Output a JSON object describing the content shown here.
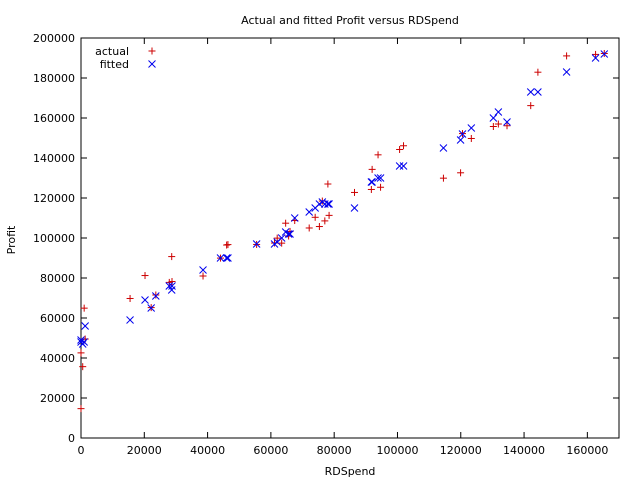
{
  "chart_data": {
    "type": "scatter",
    "title": "Actual and fitted Profit versus RDSpend",
    "xlabel": "RDSpend",
    "ylabel": "Profit",
    "xlim": [
      0,
      170000
    ],
    "ylim": [
      0,
      200000
    ],
    "xticks": [
      0,
      20000,
      40000,
      60000,
      80000,
      100000,
      120000,
      140000,
      160000
    ],
    "yticks": [
      0,
      20000,
      40000,
      60000,
      80000,
      100000,
      120000,
      140000,
      160000,
      180000,
      200000
    ],
    "grid": false,
    "legend_position": "top-left",
    "series": [
      {
        "name": "actual",
        "marker": "+",
        "color": "#cc0000",
        "points": [
          [
            165349,
            192262
          ],
          [
            162598,
            191792
          ],
          [
            153442,
            191050
          ],
          [
            144372,
            182902
          ],
          [
            142107,
            166188
          ],
          [
            131877,
            156991
          ],
          [
            134615,
            156123
          ],
          [
            130298,
            155753
          ],
          [
            120543,
            152212
          ],
          [
            123335,
            149760
          ],
          [
            101913,
            146122
          ],
          [
            100672,
            144259
          ],
          [
            93864,
            141586
          ],
          [
            91992,
            134307
          ],
          [
            119943,
            132603
          ],
          [
            114524,
            129917
          ],
          [
            78013,
            126993
          ],
          [
            94657,
            125371
          ],
          [
            91750,
            124267
          ],
          [
            86420,
            122777
          ],
          [
            76254,
            118474
          ],
          [
            78390,
            111313
          ],
          [
            73995,
            110352
          ],
          [
            67533,
            108734
          ],
          [
            77044,
            108552
          ],
          [
            64665,
            107404
          ],
          [
            75329,
            105734
          ],
          [
            72108,
            105008
          ],
          [
            66051,
            103282
          ],
          [
            65605,
            101004
          ],
          [
            61994,
            99938
          ],
          [
            61136,
            97484
          ],
          [
            63409,
            97428
          ],
          [
            55494,
            96779
          ],
          [
            46427,
            96712
          ],
          [
            46014,
            96480
          ],
          [
            28664,
            90708
          ],
          [
            44070,
            89949
          ],
          [
            20230,
            81230
          ],
          [
            38559,
            81006
          ],
          [
            28754,
            78240
          ],
          [
            27893,
            77799
          ],
          [
            23641,
            71498
          ],
          [
            15506,
            69759
          ],
          [
            22178,
            65201
          ],
          [
            1001,
            64927
          ],
          [
            1316,
            49491
          ],
          [
            0,
            42560
          ],
          [
            543,
            35673
          ],
          [
            0,
            14681
          ]
        ]
      },
      {
        "name": "fitted",
        "marker": "x",
        "color": "#0000ee",
        "points": [
          [
            165349,
            192000
          ],
          [
            162598,
            190000
          ],
          [
            153442,
            183000
          ],
          [
            144372,
            173000
          ],
          [
            142107,
            173000
          ],
          [
            131877,
            163000
          ],
          [
            134615,
            158000
          ],
          [
            130298,
            160000
          ],
          [
            120543,
            152000
          ],
          [
            123335,
            155000
          ],
          [
            101913,
            136000
          ],
          [
            100672,
            136000
          ],
          [
            93864,
            130000
          ],
          [
            91992,
            128000
          ],
          [
            119943,
            149000
          ],
          [
            114524,
            145000
          ],
          [
            78013,
            117000
          ],
          [
            94657,
            130000
          ],
          [
            91750,
            128000
          ],
          [
            86420,
            115000
          ],
          [
            76254,
            118000
          ],
          [
            78390,
            117000
          ],
          [
            73995,
            115000
          ],
          [
            67533,
            110000
          ],
          [
            77044,
            117000
          ],
          [
            64665,
            103000
          ],
          [
            75329,
            117000
          ],
          [
            72108,
            113000
          ],
          [
            66051,
            102000
          ],
          [
            65605,
            102000
          ],
          [
            61994,
            98000
          ],
          [
            61136,
            97000
          ],
          [
            63409,
            100000
          ],
          [
            55494,
            97000
          ],
          [
            46427,
            90000
          ],
          [
            46014,
            90000
          ],
          [
            28664,
            74000
          ],
          [
            44070,
            90000
          ],
          [
            20230,
            69000
          ],
          [
            38559,
            84000
          ],
          [
            28754,
            76000
          ],
          [
            27893,
            76000
          ],
          [
            23641,
            71000
          ],
          [
            15506,
            59000
          ],
          [
            22178,
            65000
          ],
          [
            1001,
            48000
          ],
          [
            1316,
            56000
          ],
          [
            0,
            49000
          ],
          [
            543,
            47000
          ],
          [
            0,
            48000
          ]
        ]
      }
    ]
  }
}
